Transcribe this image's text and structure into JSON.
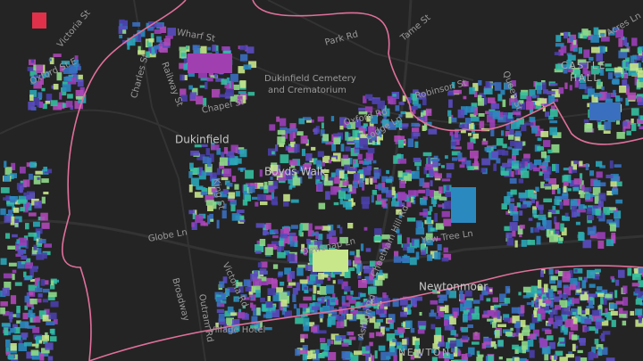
{
  "map": {
    "labels": {
      "dukinfield": "Dukinfield",
      "boyds_walk": "Boyds Walk",
      "globe_ln": "Globe Ln",
      "newtonmoor": "Newtonmoor",
      "wharf_st": "Wharf St",
      "park_rd": "Park Rd",
      "tame_st": "Tame St",
      "cemetery_1": "Dukinfield Cemetery",
      "cemetery_2": "and Crematorium",
      "chapel_st": "Chapel St",
      "oxford_rd": "Oxford Rd",
      "lodge_ln": "Lodge Ln",
      "robinson_st": "Robinson St",
      "queen_st": "Queen St",
      "castle": "CASTLE",
      "hall": "HALL",
      "acres_ln": "Acres Ln",
      "victoria_st": "Victoria St",
      "oxford_st_e": "Oxford St E",
      "charles_st": "Charles St",
      "railway_st": "Railway St",
      "king_st": "King St",
      "dewsnap_ln": "Dewsnap Ln",
      "cheetham_hill_rd": "Cheetham Hill Rd",
      "yew_tree_ln": "Yew Tree Ln",
      "broadway": "Broadway",
      "outram_rd": "Outram Rd",
      "victoria_rd": "Victoria Rd",
      "village_hotel": "Village Hotel",
      "newton": "NEWTON",
      "ashton_rd": "Ashton Rd"
    }
  }
}
